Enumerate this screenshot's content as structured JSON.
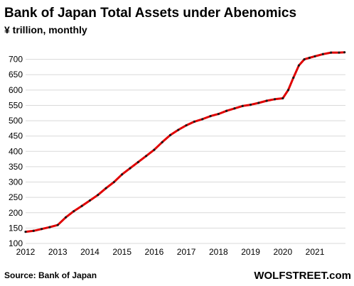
{
  "chart_data": {
    "type": "line",
    "title": "Bank of Japan Total Assets under Abenomics",
    "subtitle": "¥ trillion, monthly",
    "ylim": [
      100,
      750
    ],
    "yticks": [
      100,
      150,
      200,
      250,
      300,
      350,
      400,
      450,
      500,
      550,
      600,
      650,
      700
    ],
    "xlim": [
      2012,
      2021.95
    ],
    "xticks": [
      "2012",
      "2013",
      "2014",
      "2015",
      "2016",
      "2017",
      "2018",
      "2019",
      "2020",
      "2021"
    ],
    "series": [
      {
        "color": "#e00000",
        "marker_color": "#1a1a1a",
        "x": [
          2012.0,
          2012.25,
          2012.5,
          2012.75,
          2013.0,
          2013.25,
          2013.5,
          2013.75,
          2014.0,
          2014.25,
          2014.5,
          2014.75,
          2015.0,
          2015.25,
          2015.5,
          2015.75,
          2016.0,
          2016.25,
          2016.5,
          2016.75,
          2017.0,
          2017.25,
          2017.5,
          2017.75,
          2018.0,
          2018.25,
          2018.5,
          2018.75,
          2019.0,
          2019.25,
          2019.5,
          2019.75,
          2020.0,
          2020.17,
          2020.33,
          2020.5,
          2020.67,
          2020.83,
          2021.0,
          2021.25,
          2021.5,
          2021.75,
          2021.92
        ],
        "values": [
          138,
          141,
          147,
          153,
          160,
          185,
          205,
          222,
          240,
          258,
          280,
          300,
          325,
          345,
          365,
          385,
          405,
          430,
          453,
          470,
          485,
          497,
          505,
          515,
          522,
          532,
          540,
          548,
          552,
          558,
          565,
          570,
          573,
          600,
          640,
          680,
          700,
          705,
          710,
          717,
          722,
          722,
          723
        ]
      }
    ],
    "source": "Source: Bank of Japan",
    "brand": "WOLFSTREET.com"
  }
}
